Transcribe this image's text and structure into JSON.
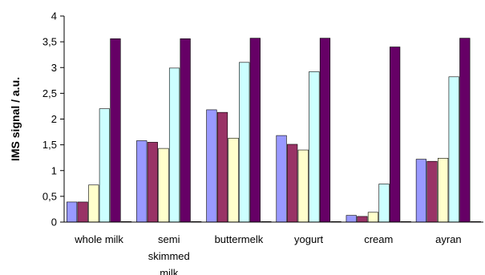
{
  "chart_data": {
    "type": "bar",
    "title": "",
    "xlabel": "",
    "ylabel": "IMS signal / a.u.",
    "ylim": [
      0,
      4
    ],
    "yticks": [
      "0",
      "0,5",
      "1",
      "1,5",
      "2",
      "2,5",
      "3",
      "3,5",
      "4"
    ],
    "yticks_values": [
      0,
      0.5,
      1,
      1.5,
      2,
      2.5,
      3,
      3.5,
      4
    ],
    "grid": false,
    "legend": "none",
    "categories": [
      [
        "whole milk"
      ],
      [
        "semi",
        "skimmed",
        "milk"
      ],
      [
        "buttermelk"
      ],
      [
        "yogurt"
      ],
      [
        "cream"
      ],
      [
        "ayran"
      ]
    ],
    "series": [
      {
        "color": "#9999ff",
        "values": [
          0.39,
          1.58,
          2.18,
          1.68,
          0.13,
          1.22
        ]
      },
      {
        "color": "#993366",
        "values": [
          0.39,
          1.55,
          2.13,
          1.51,
          0.11,
          1.18
        ]
      },
      {
        "color": "#ffffcc",
        "values": [
          0.72,
          1.43,
          1.63,
          1.4,
          0.19,
          1.24
        ]
      },
      {
        "color": "#ccffff",
        "values": [
          2.2,
          2.99,
          3.1,
          2.92,
          0.74,
          2.82
        ]
      },
      {
        "color": "#660066",
        "values": [
          3.56,
          3.56,
          3.57,
          3.57,
          3.4,
          3.57
        ]
      },
      {
        "color": "#ff8080",
        "values": [
          0.01,
          0.01,
          0.01,
          0.01,
          0.01,
          0.01
        ]
      }
    ]
  }
}
